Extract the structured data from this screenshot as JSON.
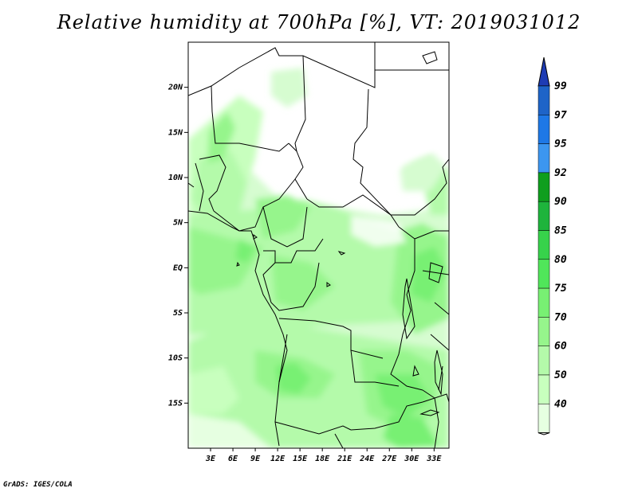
{
  "title": "Relative humidity at 700hPa [%], VT: 2019031012",
  "footer": "GrADS: IGES/COLA",
  "map": {
    "lon_range": [
      0,
      35
    ],
    "lat_range": [
      -20,
      25
    ],
    "lat_ticks": [
      {
        "value": 20,
        "label": "20N"
      },
      {
        "value": 15,
        "label": "15N"
      },
      {
        "value": 10,
        "label": "10N"
      },
      {
        "value": 5,
        "label": "5N"
      },
      {
        "value": 0,
        "label": "EQ"
      },
      {
        "value": -5,
        "label": "5S"
      },
      {
        "value": -10,
        "label": "10S"
      },
      {
        "value": -15,
        "label": "15S"
      }
    ],
    "lon_ticks": [
      {
        "value": 3,
        "label": "3E"
      },
      {
        "value": 6,
        "label": "6E"
      },
      {
        "value": 9,
        "label": "9E"
      },
      {
        "value": 12,
        "label": "12E"
      },
      {
        "value": 15,
        "label": "15E"
      },
      {
        "value": 18,
        "label": "18E"
      },
      {
        "value": 21,
        "label": "21E"
      },
      {
        "value": 24,
        "label": "24E"
      },
      {
        "value": 27,
        "label": "27E"
      },
      {
        "value": 30,
        "label": "30E"
      },
      {
        "value": 33,
        "label": "33E"
      }
    ]
  },
  "colorbar": {
    "levels": [
      {
        "label": "99",
        "color": "#1e64c8"
      },
      {
        "label": "97",
        "color": "#1e78e6"
      },
      {
        "label": "95",
        "color": "#3c96f0"
      },
      {
        "label": "92",
        "color": "#0f9e1e"
      },
      {
        "label": "90",
        "color": "#1eb43c"
      },
      {
        "label": "85",
        "color": "#37d24b"
      },
      {
        "label": "80",
        "color": "#50e65a"
      },
      {
        "label": "75",
        "color": "#78f073"
      },
      {
        "label": "70",
        "color": "#96f58c"
      },
      {
        "label": "60",
        "color": "#b4faaa"
      },
      {
        "label": "50",
        "color": "#c8ffbe"
      },
      {
        "label": "40",
        "color": "#e6ffe1"
      }
    ],
    "top_color": "#1e3cb4",
    "bottom_color": "#ffffff"
  }
}
